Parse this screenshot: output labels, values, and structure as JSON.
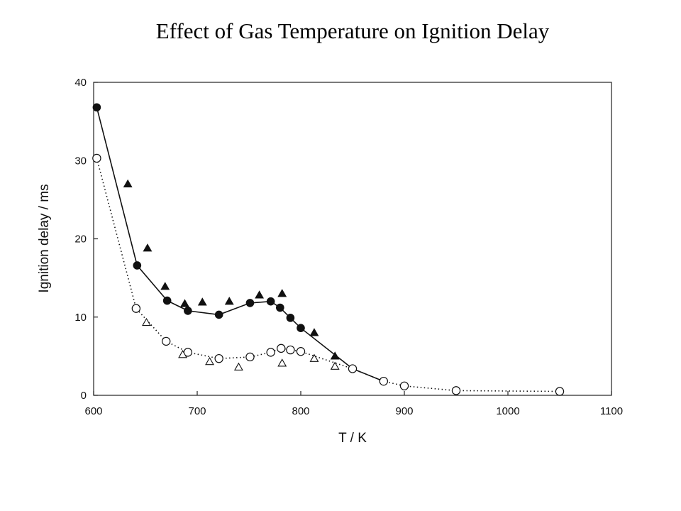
{
  "chart_data": {
    "type": "scatter",
    "title": "Effect of Gas Temperature on Ignition Delay",
    "xlabel": "T / K",
    "ylabel": "Ignition delay / ms",
    "xlim": [
      600,
      1100
    ],
    "ylim": [
      0,
      40
    ],
    "xticks": [
      600,
      700,
      800,
      900,
      1000,
      1100
    ],
    "yticks": [
      0,
      10,
      20,
      30,
      40
    ],
    "grid": false,
    "series": [
      {
        "marker": "filled-circle",
        "line": "solid",
        "points": [
          [
            603,
            36.8
          ],
          [
            642,
            16.6
          ],
          [
            671,
            12.1
          ],
          [
            691,
            10.8
          ],
          [
            721,
            10.3
          ],
          [
            751,
            11.8
          ],
          [
            771,
            12.0
          ],
          [
            780,
            11.2
          ],
          [
            790,
            9.9
          ],
          [
            800,
            8.6
          ],
          [
            850,
            3.4
          ],
          [
            880,
            1.8
          ]
        ]
      },
      {
        "marker": "open-circle",
        "line": "dotted",
        "points": [
          [
            603,
            30.3
          ],
          [
            641,
            11.1
          ],
          [
            670,
            6.9
          ],
          [
            691,
            5.5
          ],
          [
            721,
            4.7
          ],
          [
            751,
            4.9
          ],
          [
            771,
            5.5
          ],
          [
            781,
            6.0
          ],
          [
            790,
            5.8
          ],
          [
            800,
            5.6
          ],
          [
            850,
            3.4
          ],
          [
            880,
            1.8
          ],
          [
            900,
            1.2
          ],
          [
            950,
            0.6
          ],
          [
            1050,
            0.5
          ]
        ]
      },
      {
        "marker": "filled-triangle",
        "line": "none",
        "points": [
          [
            633,
            27.0
          ],
          [
            652,
            18.8
          ],
          [
            669,
            13.9
          ],
          [
            688,
            11.7
          ],
          [
            705,
            11.9
          ],
          [
            731,
            12.0
          ],
          [
            760,
            12.8
          ],
          [
            782,
            13.0
          ],
          [
            813,
            8.0
          ],
          [
            833,
            5.0
          ]
        ]
      },
      {
        "marker": "open-triangle",
        "line": "none",
        "points": [
          [
            651,
            9.3
          ],
          [
            686,
            5.2
          ],
          [
            712,
            4.3
          ],
          [
            740,
            3.6
          ],
          [
            782,
            4.1
          ],
          [
            813,
            4.7
          ],
          [
            833,
            3.7
          ]
        ]
      }
    ]
  }
}
